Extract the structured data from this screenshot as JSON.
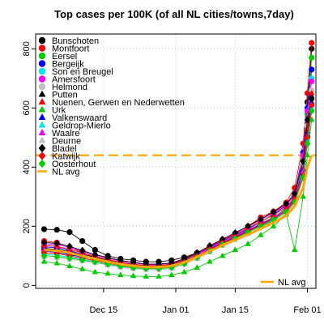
{
  "chart_data": {
    "type": "line",
    "title": "Top cases per 100K (of all NL cities/towns,7day)",
    "xlabel": "",
    "ylabel": "",
    "x_range": [
      "2020-11-29",
      "2021-02-03"
    ],
    "ylim": [
      -10,
      850
    ],
    "x_ticks": [
      {
        "date": "2020-12-15",
        "label": "Dec 15"
      },
      {
        "date": "2021-01-01",
        "label": "Jan 01"
      },
      {
        "date": "2021-01-15",
        "label": "Jan 15"
      },
      {
        "date": "2021-02-01",
        "label": "Feb 01"
      }
    ],
    "y_ticks": [
      0,
      200,
      400,
      600,
      800
    ],
    "grid": true,
    "legend_position": "top-left",
    "x": [
      "2020-12-01",
      "2020-12-04",
      "2020-12-07",
      "2020-12-10",
      "2020-12-13",
      "2020-12-16",
      "2020-12-19",
      "2020-12-22",
      "2020-12-25",
      "2020-12-28",
      "2020-12-31",
      "2021-01-03",
      "2021-01-06",
      "2021-01-09",
      "2021-01-12",
      "2021-01-15",
      "2021-01-18",
      "2021-01-21",
      "2021-01-24",
      "2021-01-27",
      "2021-01-29",
      "2021-01-31",
      "2021-02-01",
      "2021-02-02"
    ],
    "series": [
      {
        "name": "Bunschoten",
        "color": "#000000",
        "marker": "circle",
        "values": [
          190,
          188,
          180,
          150,
          120,
          100,
          90,
          85,
          80,
          80,
          85,
          95,
          110,
          130,
          150,
          170,
          190,
          200,
          220,
          250,
          300,
          450,
          620,
          800
        ]
      },
      {
        "name": "Montfoort",
        "color": "#ff0000",
        "marker": "circle",
        "values": [
          150,
          145,
          130,
          110,
          95,
          85,
          75,
          70,
          65,
          65,
          70,
          85,
          105,
          130,
          155,
          175,
          200,
          230,
          250,
          280,
          330,
          480,
          650,
          820
        ]
      },
      {
        "name": "Eersel",
        "color": "#00cd00",
        "marker": "circle",
        "values": [
          120,
          118,
          110,
          100,
          90,
          80,
          70,
          65,
          60,
          60,
          65,
          80,
          100,
          125,
          145,
          165,
          185,
          210,
          230,
          260,
          300,
          420,
          580,
          770
        ]
      },
      {
        "name": "Bergeijk",
        "color": "#0000ff",
        "marker": "circle",
        "values": [
          130,
          128,
          118,
          105,
          95,
          85,
          75,
          70,
          65,
          65,
          70,
          85,
          105,
          128,
          150,
          170,
          190,
          215,
          240,
          270,
          310,
          450,
          600,
          730
        ]
      },
      {
        "name": "Son en Breugel",
        "color": "#00e5ee",
        "marker": "circle",
        "values": [
          110,
          108,
          100,
          92,
          84,
          76,
          68,
          62,
          58,
          58,
          62,
          76,
          96,
          120,
          142,
          162,
          182,
          205,
          228,
          255,
          290,
          410,
          560,
          700
        ]
      },
      {
        "name": "Amersfoort",
        "color": "#ff00ff",
        "marker": "circle",
        "values": [
          140,
          138,
          128,
          115,
          102,
          92,
          82,
          76,
          70,
          70,
          74,
          88,
          108,
          132,
          155,
          176,
          198,
          222,
          245,
          272,
          305,
          440,
          590,
          690
        ]
      },
      {
        "name": "Helmond",
        "color": "#c0c0c0",
        "marker": "circle",
        "values": [
          100,
          98,
          92,
          85,
          78,
          70,
          63,
          58,
          55,
          55,
          60,
          74,
          94,
          118,
          140,
          160,
          180,
          202,
          222,
          248,
          282,
          400,
          540,
          660
        ]
      },
      {
        "name": "Putten",
        "color": "#000000",
        "marker": "triangle",
        "values": [
          125,
          122,
          114,
          104,
          94,
          84,
          74,
          68,
          64,
          64,
          68,
          82,
          100,
          122,
          144,
          164,
          184,
          206,
          226,
          252,
          286,
          380,
          520,
          640
        ]
      },
      {
        "name": "Nuenen, Gerwen en Nederwetten",
        "color": "#ff0000",
        "marker": "triangle",
        "values": [
          135,
          132,
          122,
          110,
          98,
          88,
          78,
          72,
          67,
          67,
          72,
          86,
          106,
          130,
          152,
          172,
          194,
          216,
          238,
          264,
          298,
          395,
          530,
          650
        ]
      },
      {
        "name": "Urk",
        "color": "#00cd00",
        "marker": "triangle",
        "values": [
          80,
          75,
          65,
          55,
          45,
          40,
          35,
          32,
          30,
          30,
          35,
          45,
          60,
          80,
          100,
          120,
          140,
          170,
          200,
          240,
          120,
          300,
          440,
          560
        ]
      },
      {
        "name": "Valkenswaard",
        "color": "#0000ff",
        "marker": "triangle",
        "values": [
          115,
          112,
          104,
          96,
          88,
          80,
          72,
          66,
          62,
          62,
          66,
          80,
          100,
          124,
          146,
          166,
          186,
          208,
          230,
          256,
          290,
          390,
          510,
          620
        ]
      },
      {
        "name": "Geldrop-Mierlo",
        "color": "#00e5ee",
        "marker": "triangle",
        "values": [
          105,
          102,
          96,
          88,
          80,
          72,
          65,
          60,
          57,
          57,
          61,
          75,
          95,
          118,
          140,
          160,
          180,
          202,
          224,
          250,
          284,
          375,
          495,
          600
        ]
      },
      {
        "name": "Waalre",
        "color": "#ff00ff",
        "marker": "triangle",
        "values": [
          120,
          118,
          110,
          100,
          90,
          80,
          72,
          66,
          62,
          62,
          66,
          80,
          100,
          124,
          146,
          166,
          186,
          208,
          230,
          256,
          290,
          385,
          505,
          610
        ]
      },
      {
        "name": "Deurne",
        "color": "#c0c0c0",
        "marker": "triangle",
        "values": [
          95,
          93,
          88,
          82,
          76,
          68,
          61,
          56,
          53,
          53,
          57,
          70,
          90,
          112,
          134,
          154,
          174,
          196,
          218,
          244,
          278,
          360,
          480,
          590
        ]
      },
      {
        "name": "Bladel",
        "color": "#000000",
        "marker": "diamond",
        "values": [
          145,
          142,
          132,
          118,
          104,
          94,
          84,
          78,
          72,
          72,
          76,
          90,
          110,
          134,
          156,
          178,
          200,
          224,
          248,
          276,
          310,
          420,
          560,
          630
        ]
      },
      {
        "name": "Katwijk",
        "color": "#ff0000",
        "marker": "diamond",
        "values": [
          110,
          108,
          100,
          92,
          84,
          76,
          68,
          63,
          59,
          59,
          63,
          77,
          97,
          120,
          142,
          162,
          182,
          204,
          226,
          252,
          286,
          370,
          500,
          610
        ]
      },
      {
        "name": "Oosterhout",
        "color": "#00cd00",
        "marker": "diamond",
        "values": [
          100,
          98,
          92,
          86,
          80,
          72,
          65,
          60,
          57,
          57,
          61,
          74,
          94,
          117,
          139,
          159,
          179,
          200,
          222,
          248,
          282,
          365,
          480,
          590
        ]
      },
      {
        "name": "NL avg",
        "color": "#ffa500",
        "marker": "none",
        "values": [
          120,
          117,
          110,
          100,
          90,
          80,
          72,
          66,
          62,
          62,
          66,
          78,
          96,
          116,
          136,
          154,
          172,
          192,
          212,
          236,
          268,
          330,
          400,
          440
        ]
      }
    ],
    "reference_lines": [
      {
        "value": 440,
        "color": "#ffa500",
        "style": "dashed"
      }
    ],
    "legends": [
      {
        "position": "top-left",
        "entries": [
          "Bunschoten",
          "Montfoort",
          "Eersel",
          "Bergeijk",
          "Son en Breugel",
          "Amersfoort",
          "Helmond",
          "Putten",
          "Nuenen, Gerwen en Nederwetten",
          "Urk",
          "Valkenswaard",
          "Geldrop-Mierlo",
          "Waalre",
          "Deurne",
          "Bladel",
          "Katwijk",
          "Oosterhout",
          "NL avg"
        ]
      },
      {
        "position": "bottom-right",
        "entries": [
          "NL avg"
        ]
      }
    ]
  }
}
